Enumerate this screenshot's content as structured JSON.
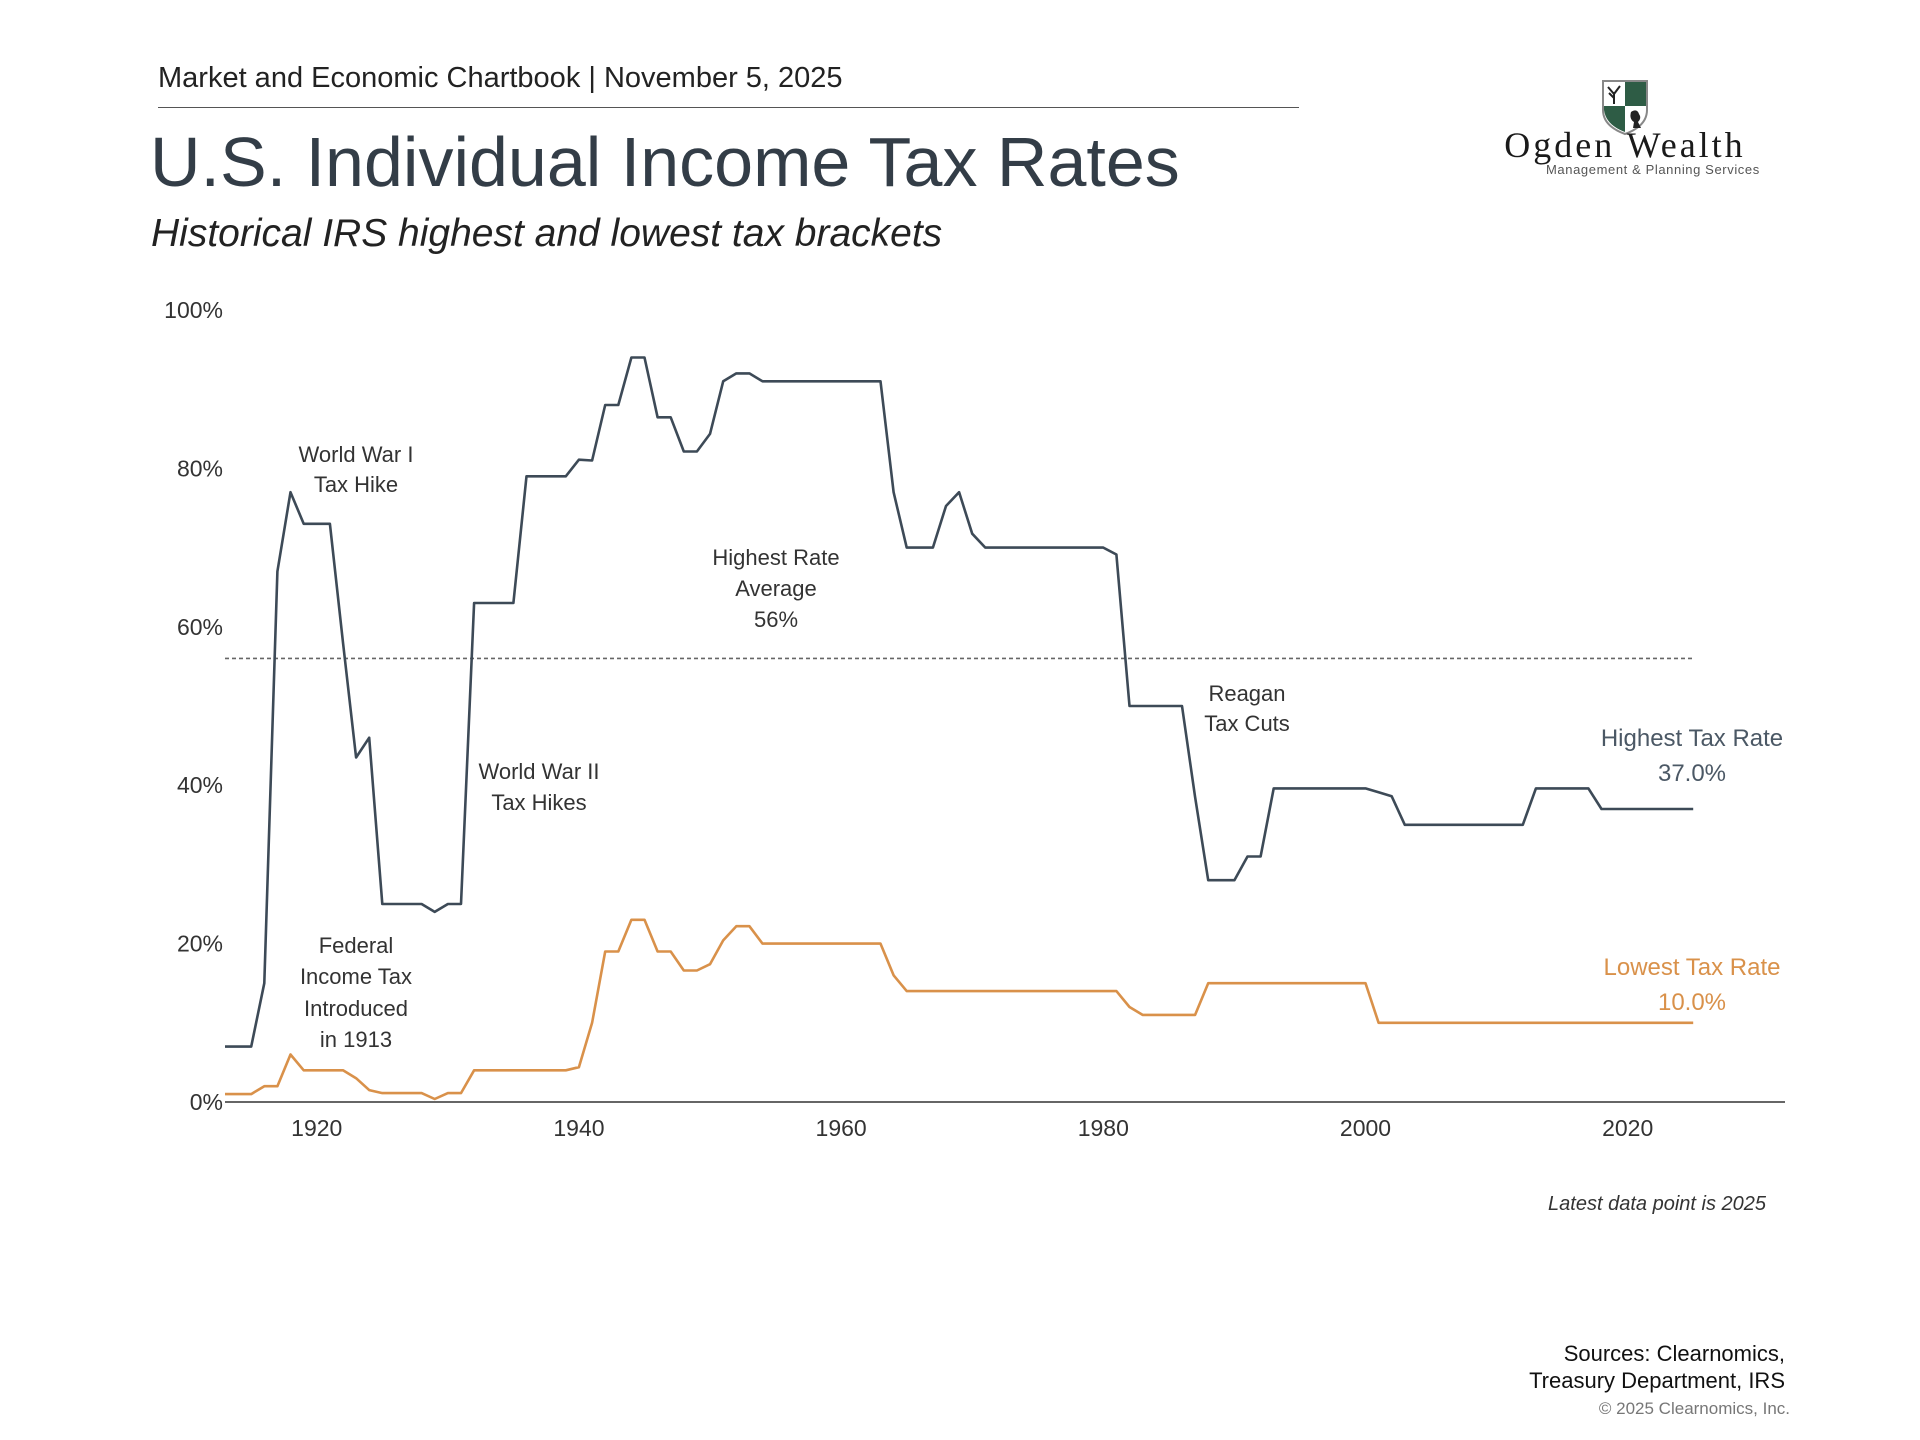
{
  "header": {
    "chartbook": "Market and Economic Chartbook | November 5, 2025",
    "title": "U.S. Individual Income Tax Rates",
    "subtitle": "Historical IRS highest and lowest tax brackets"
  },
  "logo": {
    "name": "Ogden Wealth",
    "tagline": "Management & Planning Services",
    "colors": {
      "green": "#2e5c45"
    }
  },
  "footer": {
    "latest": "Latest data point is 2025",
    "sources_line1": "Sources: Clearnomics,",
    "sources_line2": "Treasury Department, IRS",
    "copyright": "© 2025 Clearnomics, Inc."
  },
  "chart_data": {
    "type": "line",
    "title": "U.S. Individual Income Tax Rates",
    "subtitle": "Historical IRS highest and lowest tax brackets",
    "xlim": [
      1913,
      2032
    ],
    "ylim": [
      0,
      100
    ],
    "x_ticks": [
      1920,
      1940,
      1960,
      1980,
      2000,
      2020
    ],
    "y_ticks": [
      0,
      20,
      40,
      60,
      80,
      100
    ],
    "y_tick_labels": [
      "0%",
      "20%",
      "40%",
      "60%",
      "80%",
      "100%"
    ],
    "grid": false,
    "x": [
      1913,
      1914,
      1915,
      1916,
      1917,
      1918,
      1919,
      1920,
      1921,
      1922,
      1923,
      1924,
      1925,
      1926,
      1927,
      1928,
      1929,
      1930,
      1931,
      1932,
      1933,
      1934,
      1935,
      1936,
      1937,
      1938,
      1939,
      1940,
      1941,
      1942,
      1943,
      1944,
      1945,
      1946,
      1947,
      1948,
      1949,
      1950,
      1951,
      1952,
      1953,
      1954,
      1955,
      1956,
      1957,
      1958,
      1959,
      1960,
      1961,
      1962,
      1963,
      1964,
      1965,
      1966,
      1967,
      1968,
      1969,
      1970,
      1971,
      1972,
      1973,
      1974,
      1975,
      1976,
      1977,
      1978,
      1979,
      1980,
      1981,
      1982,
      1983,
      1984,
      1985,
      1986,
      1987,
      1988,
      1989,
      1990,
      1991,
      1992,
      1993,
      1994,
      1995,
      1996,
      1997,
      1998,
      1999,
      2000,
      2001,
      2002,
      2003,
      2004,
      2005,
      2006,
      2007,
      2008,
      2009,
      2010,
      2011,
      2012,
      2013,
      2014,
      2015,
      2016,
      2017,
      2018,
      2019,
      2020,
      2021,
      2022,
      2023,
      2024,
      2025
    ],
    "series": [
      {
        "name": "Highest Tax Rate",
        "end_label": "37.0%",
        "color": "#3d4a57",
        "values": [
          7,
          7,
          7,
          15,
          67,
          77,
          73,
          73,
          73,
          58,
          43.5,
          46,
          25,
          25,
          25,
          25,
          24,
          25,
          25,
          63,
          63,
          63,
          63,
          79,
          79,
          79,
          79,
          81.1,
          81,
          88,
          88,
          94,
          94,
          86.45,
          86.45,
          82.13,
          82.13,
          84.36,
          91,
          92,
          92,
          91,
          91,
          91,
          91,
          91,
          91,
          91,
          91,
          91,
          91,
          77,
          70,
          70,
          70,
          75.25,
          77,
          71.75,
          70,
          70,
          70,
          70,
          70,
          70,
          70,
          70,
          70,
          70,
          69.13,
          50,
          50,
          50,
          50,
          50,
          38.5,
          28,
          28,
          28,
          31,
          31,
          39.6,
          39.6,
          39.6,
          39.6,
          39.6,
          39.6,
          39.6,
          39.6,
          39.1,
          38.6,
          35,
          35,
          35,
          35,
          35,
          35,
          35,
          35,
          35,
          35,
          39.6,
          39.6,
          39.6,
          39.6,
          39.6,
          37,
          37,
          37,
          37,
          37,
          37,
          37,
          37
        ]
      },
      {
        "name": "Lowest Tax Rate",
        "end_label": "10.0%",
        "color": "#d9914a",
        "values": [
          1,
          1,
          1,
          2,
          2,
          6,
          4,
          4,
          4,
          4,
          3,
          1.5,
          1.125,
          1.125,
          1.125,
          1.125,
          0.375,
          1.125,
          1.125,
          4,
          4,
          4,
          4,
          4,
          4,
          4,
          4,
          4.4,
          10,
          19,
          19,
          23,
          23,
          19,
          19,
          16.6,
          16.6,
          17.4,
          20.4,
          22.2,
          22.2,
          20,
          20,
          20,
          20,
          20,
          20,
          20,
          20,
          20,
          20,
          16,
          14,
          14,
          14,
          14,
          14,
          14,
          14,
          14,
          14,
          14,
          14,
          14,
          14,
          14,
          14,
          14,
          14,
          12,
          11,
          11,
          11,
          11,
          11,
          15,
          15,
          15,
          15,
          15,
          15,
          15,
          15,
          15,
          15,
          15,
          15,
          15,
          10,
          10,
          10,
          10,
          10,
          10,
          10,
          10,
          10,
          10,
          10,
          10,
          10,
          10,
          10,
          10,
          10,
          10,
          10,
          10,
          10,
          10,
          10,
          10,
          10
        ]
      }
    ],
    "reference_line": {
      "value": 56,
      "style": "dotted",
      "label": [
        "Highest Rate",
        "Average",
        "56%"
      ]
    },
    "annotations": [
      {
        "lines": [
          "World War I",
          "Tax Hike"
        ]
      },
      {
        "lines": [
          "World War II",
          "Tax Hikes"
        ]
      },
      {
        "lines": [
          "Reagan",
          "Tax Cuts"
        ]
      },
      {
        "lines": [
          "Federal",
          "Income Tax",
          "Introduced",
          "in 1913"
        ]
      }
    ]
  }
}
